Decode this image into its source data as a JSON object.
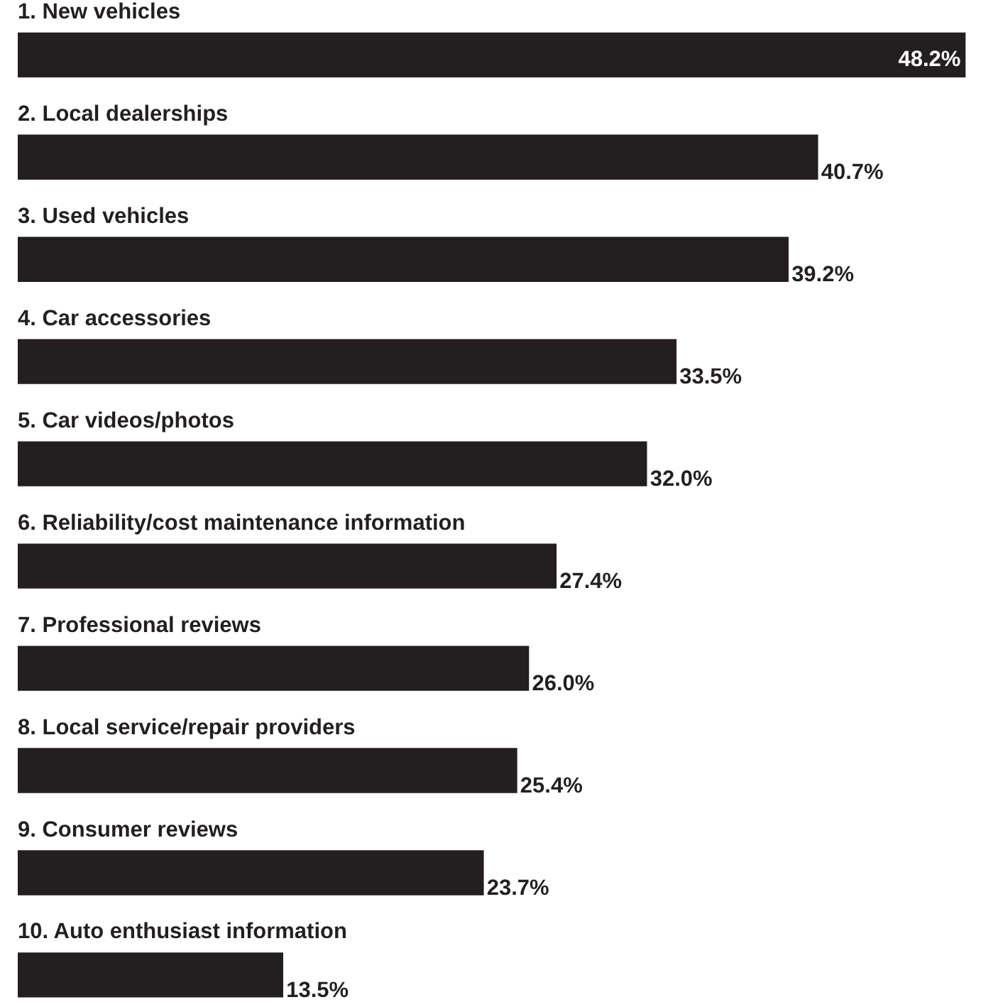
{
  "chart_data": {
    "type": "bar",
    "orientation": "horizontal",
    "categories": [
      "1. New vehicles",
      "2. Local dealerships",
      "3. Used vehicles",
      "4. Car accessories",
      "5. Car videos/photos",
      "6. Reliability/cost maintenance information",
      "7. Professional reviews",
      "8. Local service/repair providers",
      "9. Consumer reviews",
      "10. Auto enthusiast information"
    ],
    "values": [
      48.2,
      40.7,
      39.2,
      33.5,
      32.0,
      27.4,
      26.0,
      25.4,
      23.7,
      13.5
    ],
    "value_labels": [
      "48.2%",
      "40.7%",
      "39.2%",
      "33.5%",
      "32.0%",
      "27.4%",
      "26.0%",
      "25.4%",
      "23.7%",
      "13.5%"
    ],
    "color": "#231f20"
  }
}
